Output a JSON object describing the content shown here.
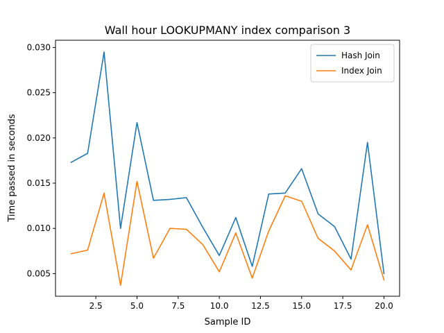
{
  "chart_data": {
    "type": "line",
    "title": "Wall hour LOOKUPMANY index comparison 3",
    "xlabel": "Sample ID",
    "ylabel": "Time passed in seconds",
    "xlim": [
      0.05,
      20.95
    ],
    "ylim": [
      0.0025,
      0.0308
    ],
    "x_ticks": [
      2.5,
      5.0,
      7.5,
      10.0,
      12.5,
      15.0,
      17.5,
      20.0
    ],
    "x_tick_labels": [
      "2.5",
      "5.0",
      "7.5",
      "10.0",
      "12.5",
      "15.0",
      "17.5",
      "20.0"
    ],
    "y_ticks": [
      0.005,
      0.01,
      0.015,
      0.02,
      0.025,
      0.03
    ],
    "y_tick_labels": [
      "0.005",
      "0.010",
      "0.015",
      "0.020",
      "0.025",
      "0.030"
    ],
    "grid": false,
    "legend_position": "top-right",
    "x": [
      1,
      2,
      3,
      4,
      5,
      6,
      7,
      8,
      9,
      10,
      11,
      12,
      13,
      14,
      15,
      16,
      17,
      18,
      19,
      20
    ],
    "series": [
      {
        "name": "Hash Join",
        "color": "#1f77b4",
        "values": [
          0.0173,
          0.0183,
          0.0295,
          0.01,
          0.0217,
          0.0131,
          0.0132,
          0.0134,
          0.0101,
          0.007,
          0.0112,
          0.0058,
          0.0138,
          0.0139,
          0.0166,
          0.0116,
          0.0102,
          0.0066,
          0.0195,
          0.005
        ]
      },
      {
        "name": "Index Join",
        "color": "#ff7f0e",
        "values": [
          0.0072,
          0.0076,
          0.0139,
          0.0037,
          0.0152,
          0.0067,
          0.01,
          0.0099,
          0.0082,
          0.0052,
          0.0095,
          0.0045,
          0.0097,
          0.0136,
          0.013,
          0.0089,
          0.0075,
          0.0054,
          0.0104,
          0.0043
        ]
      }
    ]
  }
}
